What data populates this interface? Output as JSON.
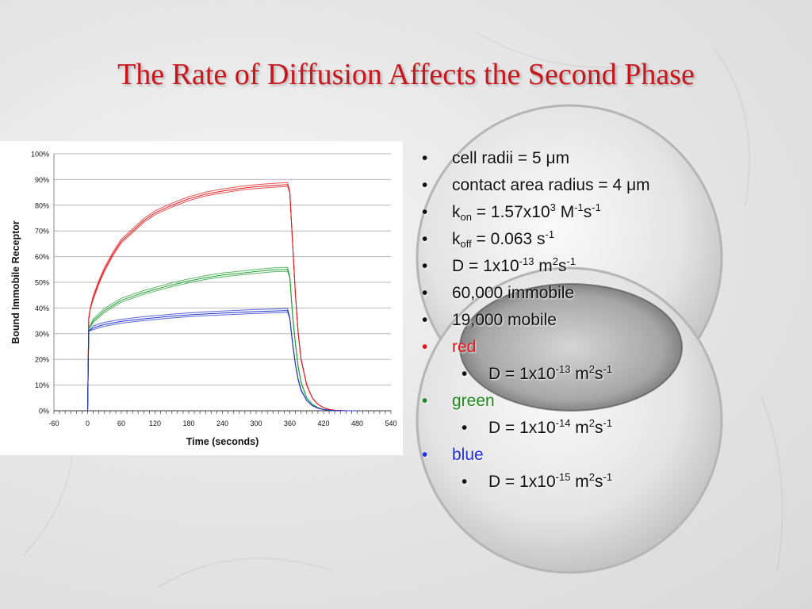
{
  "slide": {
    "title": "The Rate of Diffusion Affects the Second Phase"
  },
  "chart_data": {
    "type": "line",
    "xlabel": "Time (seconds)",
    "ylabel": "Bound Immobile Receptor",
    "xlim": [
      -60,
      540
    ],
    "ylim": [
      0,
      100
    ],
    "x_ticks": [
      "-60",
      "0",
      "60",
      "120",
      "180",
      "240",
      "300",
      "360",
      "420",
      "480",
      "540"
    ],
    "y_ticks": [
      "0%",
      "10%",
      "20%",
      "30%",
      "40%",
      "50%",
      "60%",
      "70%",
      "80%",
      "90%",
      "100%"
    ],
    "grid": {
      "horizontal": true,
      "vertical": false
    },
    "legend": "none",
    "x": [
      0,
      2,
      5,
      10,
      20,
      30,
      45,
      60,
      80,
      100,
      120,
      150,
      180,
      210,
      240,
      270,
      300,
      330,
      356,
      360,
      365,
      370,
      375,
      380,
      390,
      400,
      410,
      420,
      430,
      440,
      460,
      480
    ],
    "series": [
      {
        "color": "#e31a1c",
        "values": [
          0,
          36,
          40,
          44,
          50,
          55,
          61,
          66,
          70,
          74,
          77,
          80,
          82.5,
          84.3,
          85.5,
          86.5,
          87.2,
          87.7,
          88,
          85,
          65,
          45,
          30,
          20,
          10,
          5,
          2.5,
          1.2,
          0.5,
          0.2,
          0,
          0
        ]
      },
      {
        "color": "#22a033",
        "values": [
          0,
          32,
          33,
          35,
          37,
          39,
          41,
          43,
          44.5,
          46,
          47.2,
          49,
          50.5,
          51.8,
          52.8,
          53.5,
          54.2,
          54.8,
          55,
          52,
          37,
          26,
          17,
          11,
          5,
          2.5,
          1.2,
          0.5,
          0.2,
          0,
          0,
          0
        ]
      },
      {
        "color": "#2233cc",
        "values": [
          0,
          31,
          31.5,
          32.2,
          33,
          33.6,
          34.2,
          34.8,
          35.3,
          35.8,
          36.2,
          36.8,
          37.3,
          37.7,
          38,
          38.3,
          38.6,
          38.8,
          39,
          36,
          26,
          18,
          12,
          8,
          4,
          2,
          1,
          0.5,
          0.2,
          0,
          0,
          0
        ]
      }
    ]
  },
  "bullets": {
    "cell_radii": {
      "label": "cell radii = 5 ",
      "mu": "μ",
      "unit": "m"
    },
    "contact_radius": {
      "label": "contact area radius = 4 ",
      "mu": "μ",
      "unit": "m"
    },
    "kon": {
      "k": "k",
      "sub": "on",
      "mid": " = 1.57x10",
      "exp": "3",
      "unit1": " M",
      "exp2": "-1",
      "unit2": "s",
      "exp3": "-1"
    },
    "koff": {
      "k": "k",
      "sub": "off",
      "mid": " = 0.063 s",
      "exp": "-1"
    },
    "D": {
      "pre": "D = 1x10",
      "exp": "-13",
      "m": " m",
      "exp2": "2",
      "s": "s",
      "exp3": "-1"
    },
    "immobile": "60,000 immobile",
    "mobile": "19,000 mobile",
    "red": {
      "label": "red",
      "pre": "D = 1x10",
      "exp": "-13",
      "m": " m",
      "exp2": "2",
      "s": "s",
      "exp3": "-1"
    },
    "green": {
      "label": "green",
      "pre": "D = 1x10",
      "exp": "-14",
      "m": " m",
      "exp2": "2",
      "s": "s",
      "exp3": "-1"
    },
    "blue": {
      "label": "blue",
      "pre": "D = 1x10",
      "exp": "-15",
      "m": " m",
      "exp2": "2",
      "s": "s",
      "exp3": "-1"
    },
    "bullet_symbol": "•"
  }
}
